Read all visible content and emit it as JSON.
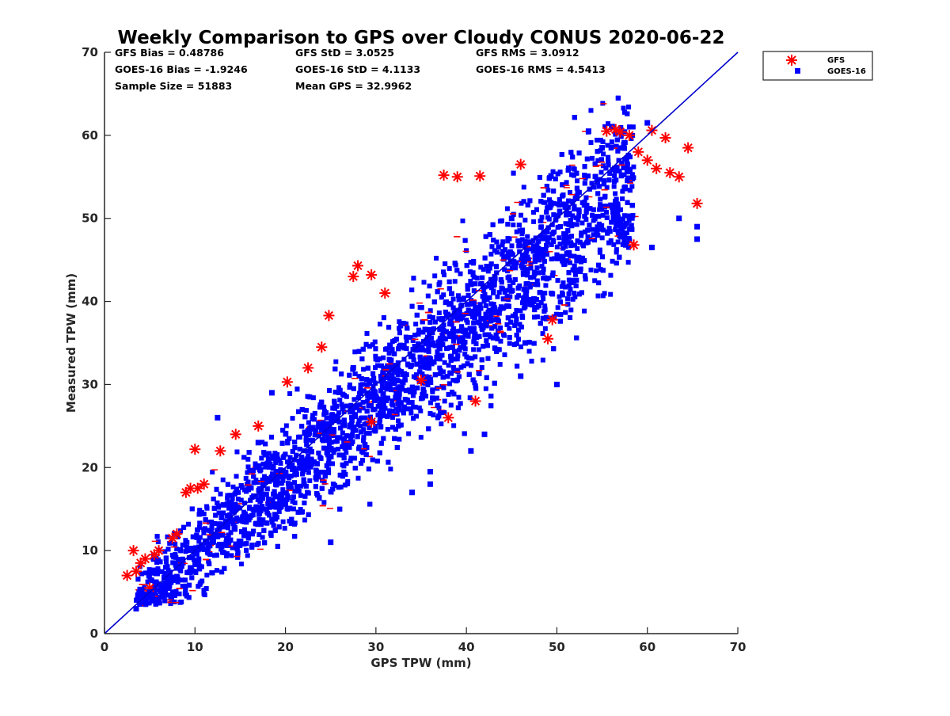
{
  "chart_data": {
    "type": "scatter",
    "title": "Weekly Comparison to GPS over Cloudy CONUS 2020-06-22",
    "xlabel": "GPS TPW (mm)",
    "ylabel": "Measured TPW (mm)",
    "xlim": [
      0,
      70
    ],
    "ylim": [
      0,
      70
    ],
    "xticks": [
      "0",
      "10",
      "20",
      "30",
      "40",
      "50",
      "60",
      "70"
    ],
    "yticks": [
      "0",
      "10",
      "20",
      "30",
      "40",
      "50",
      "60",
      "70"
    ],
    "grid": false,
    "legend_position": "outside top-right",
    "reference_line": {
      "from": [
        0,
        0
      ],
      "to": [
        70,
        70
      ],
      "color": "#0000cc"
    },
    "stats": [
      [
        "GFS Bias = 0.48786",
        "GFS StD = 3.0525",
        "GFS RMS = 3.0912"
      ],
      [
        "GOES-16 Bias = -1.9246",
        "GOES-16 StD = 4.1133",
        "GOES-16 RMS = 4.5413"
      ],
      [
        "Sample Size = 51883",
        "Mean GPS = 32.9962",
        ""
      ]
    ],
    "series": [
      {
        "name": "GFS",
        "marker": "asterisk",
        "color": "#ff0000",
        "x": [
          2.5,
          3.2,
          3.5,
          4.0,
          4.5,
          5.0,
          5.5,
          6.0,
          7.5,
          8.0,
          9.0,
          9.5,
          10.0,
          10.3,
          11.0,
          12.8,
          14.5,
          17.0,
          20.2,
          22.5,
          24.0,
          24.8,
          27.5,
          28.0,
          29.5,
          31.0,
          37.5,
          39.0,
          41.5,
          46.0,
          49.0,
          49.5,
          55.5,
          56.5,
          57.0,
          58.0,
          59.0,
          60.0,
          61.0,
          62.5,
          63.5,
          64.5,
          65.5,
          62.0,
          60.5,
          58.5,
          38.0,
          41.0,
          35.0,
          29.5
        ],
        "y": [
          7.0,
          10.0,
          7.5,
          8.5,
          9.0,
          5.5,
          9.5,
          10.0,
          11.5,
          12.0,
          17.0,
          17.5,
          22.2,
          17.5,
          18.0,
          22.0,
          24.0,
          25.0,
          30.3,
          32.0,
          34.5,
          38.3,
          43.0,
          44.3,
          43.2,
          41.0,
          55.2,
          55.0,
          55.1,
          56.5,
          35.5,
          37.8,
          60.5,
          60.7,
          60.4,
          60.0,
          58.0,
          57.0,
          56.0,
          55.5,
          55.0,
          58.5,
          51.8,
          59.7,
          60.6,
          46.8,
          26.0,
          28.0,
          30.5,
          25.5
        ]
      },
      {
        "name": "GOES-16",
        "marker": "square",
        "color": "#0000ff",
        "x": [
          3.5,
          5.0,
          12.5,
          17.0,
          18.5,
          27.5,
          34.0,
          36.0,
          45.0,
          46.0,
          50.0,
          53.5,
          55.0,
          60.0,
          65.5,
          65.5,
          63.5,
          60.5,
          46.5,
          42.0,
          36.0,
          25.0,
          40.5,
          48.0
        ],
        "y": [
          3.0,
          5.0,
          26.0,
          23.0,
          29.0,
          32.0,
          17.0,
          18.0,
          50.0,
          31.0,
          30.0,
          60.5,
          58.5,
          61.5,
          49.0,
          47.5,
          50.0,
          46.5,
          35.0,
          24.0,
          19.5,
          11.0,
          22.0,
          39.5
        ]
      }
    ]
  }
}
